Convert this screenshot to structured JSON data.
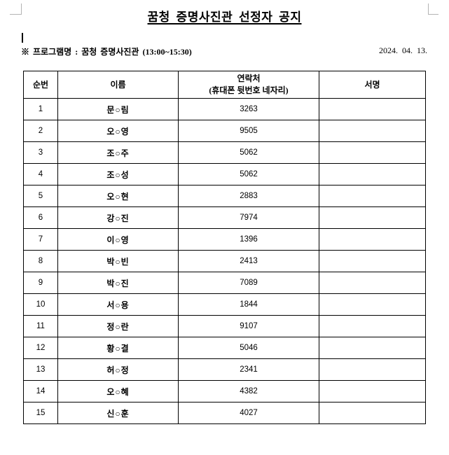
{
  "colors": {
    "text": "#000000",
    "table_border": "#000000",
    "corner_mark": "#b3b3b3",
    "background": "#ffffff"
  },
  "page": {
    "title": "꿈청 증명사진관 선정자 공지",
    "program_label": "※ 프로그램명 : 꿈청 증명사진관 (13:00~15:30)",
    "date": "2024. 04. 13."
  },
  "table": {
    "headers": {
      "no": "순번",
      "name": "이름",
      "contact_line1": "연락처",
      "contact_line2": "(휴대폰 뒷번호 네자리)",
      "signature": "서명"
    },
    "rows": [
      {
        "no": "1",
        "name": "문○림",
        "contact": "3263",
        "signature": ""
      },
      {
        "no": "2",
        "name": "오○영",
        "contact": "9505",
        "signature": ""
      },
      {
        "no": "3",
        "name": "조○주",
        "contact": "5062",
        "signature": ""
      },
      {
        "no": "4",
        "name": "조○성",
        "contact": "5062",
        "signature": ""
      },
      {
        "no": "5",
        "name": "오○현",
        "contact": "2883",
        "signature": ""
      },
      {
        "no": "6",
        "name": "강○진",
        "contact": "7974",
        "signature": ""
      },
      {
        "no": "7",
        "name": "이○영",
        "contact": "1396",
        "signature": ""
      },
      {
        "no": "8",
        "name": "박○빈",
        "contact": "2413",
        "signature": ""
      },
      {
        "no": "9",
        "name": "박○진",
        "contact": "7089",
        "signature": ""
      },
      {
        "no": "10",
        "name": "서○용",
        "contact": "1844",
        "signature": ""
      },
      {
        "no": "11",
        "name": "정○란",
        "contact": "9107",
        "signature": ""
      },
      {
        "no": "12",
        "name": "황○결",
        "contact": "5046",
        "signature": ""
      },
      {
        "no": "13",
        "name": "허○정",
        "contact": "2341",
        "signature": ""
      },
      {
        "no": "14",
        "name": "오○혜",
        "contact": "4382",
        "signature": ""
      },
      {
        "no": "15",
        "name": "신○훈",
        "contact": "4027",
        "signature": ""
      }
    ]
  }
}
